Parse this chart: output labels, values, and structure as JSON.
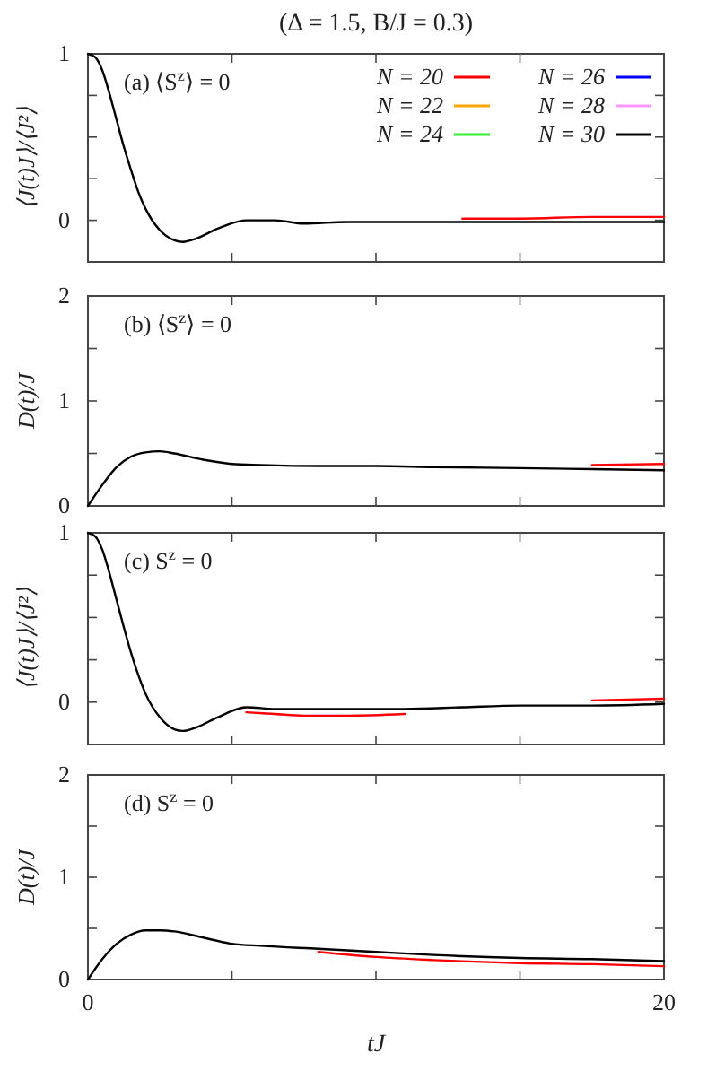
{
  "chart_data": [
    {
      "type": "line",
      "title": "(Δ = 1.5, B/J = 0.3)",
      "ylabel": "⟨J(t)J⟩/⟨J²⟩",
      "annotations": [
        "(a) ⟨S$^{z}$⟩ = 0"
      ],
      "legend": "top right",
      "tick_labels": "y",
      "x": [
        0,
        0.25,
        0.5,
        0.75,
        1,
        1.25,
        1.5,
        1.75,
        2,
        2.5,
        3,
        3.3,
        3.75,
        4.5,
        5.5,
        6.5,
        7.5,
        9,
        11,
        13,
        15,
        17.5,
        20
      ],
      "xlim": [
        0,
        20
      ],
      "xticks": [
        {
          "value": 0,
          "label": null
        },
        {
          "value": 5,
          "label": null
        },
        {
          "value": 10,
          "label": null
        },
        {
          "value": 15,
          "label": null
        },
        {
          "value": 20,
          "label": null
        }
      ],
      "ylim": [
        -0.25,
        1
      ],
      "yticks": [
        {
          "value": -0.25,
          "label": null
        },
        0,
        {
          "value": 0.25,
          "label": null
        },
        {
          "value": 0.5,
          "label": null
        },
        {
          "value": 0.75,
          "label": null
        },
        1
      ],
      "series": [
        {
          "name": "N = 20",
          "color": "#ff0000",
          "values": [
            null,
            null,
            null,
            null,
            null,
            null,
            null,
            null,
            null,
            null,
            null,
            null,
            null,
            null,
            null,
            null,
            null,
            null,
            null,
            0.01,
            0.01,
            0.02,
            0.02
          ]
        },
        {
          "name": "N = 22",
          "color": "#ffa500",
          "values": [
            null,
            null,
            null,
            null,
            null,
            null,
            null,
            null,
            null,
            null,
            null,
            null,
            null,
            null,
            null,
            null,
            null,
            null,
            null,
            null,
            null,
            null,
            null
          ]
        },
        {
          "name": "N = 24",
          "color": "#33ee33",
          "values": [
            null,
            null,
            null,
            null,
            null,
            null,
            null,
            null,
            null,
            null,
            null,
            null,
            null,
            null,
            null,
            null,
            null,
            null,
            null,
            null,
            null,
            null,
            null
          ]
        },
        {
          "name": "N = 26",
          "color": "#0000ff",
          "values": [
            null,
            null,
            null,
            null,
            null,
            null,
            null,
            null,
            null,
            null,
            null,
            null,
            null,
            null,
            null,
            null,
            null,
            null,
            null,
            null,
            null,
            null,
            null
          ]
        },
        {
          "name": "N = 28",
          "color": "#ff99ff",
          "values": [
            null,
            null,
            null,
            null,
            null,
            null,
            null,
            null,
            null,
            null,
            null,
            null,
            null,
            null,
            null,
            null,
            null,
            null,
            null,
            null,
            null,
            null,
            null
          ]
        },
        {
          "name": "N = 30",
          "color": "#000000",
          "values": [
            1,
            0.98,
            0.9,
            0.76,
            0.6,
            0.44,
            0.3,
            0.17,
            0.07,
            -0.06,
            -0.12,
            -0.13,
            -0.11,
            -0.05,
            0,
            0,
            -0.02,
            -0.01,
            -0.01,
            -0.01,
            -0.01,
            -0.01,
            -0.01
          ]
        }
      ]
    },
    {
      "type": "line",
      "ylabel": "D(t)/J",
      "annotations": [
        "(b) ⟨S$^{z}$⟩ = 0"
      ],
      "tick_labels": "y",
      "x": [
        0,
        0.5,
        1,
        1.5,
        2,
        2.5,
        3,
        4,
        5,
        6,
        8,
        10,
        12,
        15,
        17.5,
        20
      ],
      "xlim": [
        0,
        20
      ],
      "xticks": [
        {
          "value": 0,
          "label": null
        },
        {
          "value": 5,
          "label": null
        },
        {
          "value": 10,
          "label": null
        },
        {
          "value": 15,
          "label": null
        },
        {
          "value": 20,
          "label": null
        }
      ],
      "ylim": [
        0,
        2
      ],
      "yticks": [
        0,
        {
          "value": 0.5,
          "label": null
        },
        1,
        {
          "value": 1.5,
          "label": null
        },
        2
      ],
      "series": [
        {
          "color": "#ff0000",
          "values": [
            null,
            null,
            null,
            null,
            null,
            null,
            null,
            null,
            null,
            null,
            null,
            null,
            null,
            null,
            0.39,
            0.4
          ]
        },
        {
          "color": "#ffa500",
          "values": [
            null,
            null,
            null,
            null,
            null,
            null,
            null,
            null,
            null,
            null,
            null,
            null,
            null,
            null,
            null,
            null
          ]
        },
        {
          "color": "#33ee33",
          "values": [
            null,
            null,
            null,
            null,
            null,
            null,
            null,
            null,
            null,
            null,
            null,
            null,
            null,
            null,
            null,
            null
          ]
        },
        {
          "color": "#0000ff",
          "values": [
            null,
            null,
            null,
            null,
            null,
            null,
            null,
            null,
            null,
            null,
            null,
            null,
            null,
            null,
            null,
            null
          ]
        },
        {
          "color": "#ff99ff",
          "values": [
            null,
            null,
            null,
            null,
            null,
            null,
            null,
            null,
            null,
            null,
            null,
            null,
            null,
            null,
            null,
            null
          ]
        },
        {
          "color": "#000000",
          "values": [
            0,
            0.2,
            0.37,
            0.47,
            0.51,
            0.52,
            0.5,
            0.44,
            0.4,
            0.39,
            0.38,
            0.38,
            0.37,
            0.36,
            0.35,
            0.34
          ]
        }
      ]
    },
    {
      "type": "line",
      "ylabel": "⟨J(t)J⟩/⟨J²⟩",
      "annotations": [
        "(c) S$^{z}$ = 0"
      ],
      "tick_labels": "y",
      "x": [
        0,
        0.25,
        0.5,
        0.75,
        1,
        1.25,
        1.5,
        1.75,
        2,
        2.5,
        3,
        3.3,
        3.75,
        4.5,
        5.5,
        6.5,
        7.5,
        9,
        11,
        13,
        15,
        17.5,
        20
      ],
      "xlim": [
        0,
        20
      ],
      "xticks": [
        {
          "value": 0,
          "label": null
        },
        {
          "value": 5,
          "label": null
        },
        {
          "value": 10,
          "label": null
        },
        {
          "value": 15,
          "label": null
        },
        {
          "value": 20,
          "label": null
        }
      ],
      "ylim": [
        -0.25,
        1
      ],
      "yticks": [
        {
          "value": -0.25,
          "label": null
        },
        0,
        {
          "value": 0.25,
          "label": null
        },
        {
          "value": 0.5,
          "label": null
        },
        {
          "value": 0.75,
          "label": null
        },
        1
      ],
      "series": [
        {
          "color": "#ff0000",
          "values": [
            null,
            null,
            null,
            null,
            null,
            null,
            null,
            null,
            null,
            null,
            null,
            null,
            null,
            null,
            -0.06,
            -0.07,
            -0.08,
            -0.08,
            -0.07,
            null,
            null,
            0.01,
            0.02
          ]
        },
        {
          "color": "#ffa500",
          "values": [
            null,
            null,
            null,
            null,
            null,
            null,
            null,
            null,
            null,
            null,
            null,
            null,
            null,
            null,
            null,
            null,
            null,
            null,
            null,
            null,
            null,
            null,
            null
          ]
        },
        {
          "color": "#33ee33",
          "values": [
            null,
            null,
            null,
            null,
            null,
            null,
            null,
            null,
            null,
            null,
            null,
            null,
            null,
            null,
            null,
            null,
            null,
            null,
            null,
            null,
            null,
            null,
            null
          ]
        },
        {
          "color": "#0000ff",
          "values": [
            null,
            null,
            null,
            null,
            null,
            null,
            null,
            null,
            null,
            null,
            null,
            null,
            null,
            null,
            null,
            null,
            null,
            null,
            null,
            null,
            null,
            null,
            null
          ]
        },
        {
          "color": "#ff99ff",
          "values": [
            null,
            null,
            null,
            null,
            null,
            null,
            null,
            null,
            null,
            null,
            null,
            null,
            null,
            null,
            null,
            null,
            null,
            null,
            null,
            null,
            null,
            null,
            null
          ]
        },
        {
          "color": "#000000",
          "values": [
            1,
            0.98,
            0.9,
            0.76,
            0.6,
            0.44,
            0.29,
            0.16,
            0.05,
            -0.09,
            -0.16,
            -0.17,
            -0.15,
            -0.09,
            -0.03,
            -0.04,
            -0.04,
            -0.04,
            -0.04,
            -0.03,
            -0.02,
            -0.02,
            -0.01
          ]
        }
      ]
    },
    {
      "type": "line",
      "ylabel": "D(t)/J",
      "xlabel": "tJ",
      "annotations": [
        "(d) S$^{z}$ = 0"
      ],
      "x": [
        0,
        0.5,
        1,
        1.5,
        2,
        2.5,
        3,
        4,
        5,
        6,
        8,
        10,
        12,
        15,
        17.5,
        20
      ],
      "xlim": [
        0,
        20
      ],
      "xticks": [
        0,
        {
          "value": 5,
          "label": null
        },
        {
          "value": 10,
          "label": null
        },
        {
          "value": 15,
          "label": null
        },
        20
      ],
      "ylim": [
        0,
        2
      ],
      "yticks": [
        0,
        {
          "value": 0.5,
          "label": null
        },
        1,
        {
          "value": 1.5,
          "label": null
        },
        2
      ],
      "series": [
        {
          "color": "#ff0000",
          "values": [
            null,
            null,
            null,
            null,
            null,
            null,
            null,
            null,
            null,
            null,
            0.27,
            0.22,
            0.19,
            0.16,
            0.15,
            0.13
          ]
        },
        {
          "color": "#ffa500",
          "values": [
            null,
            null,
            null,
            null,
            null,
            null,
            null,
            null,
            null,
            null,
            null,
            null,
            null,
            null,
            null,
            null
          ]
        },
        {
          "color": "#33ee33",
          "values": [
            null,
            null,
            null,
            null,
            null,
            null,
            null,
            null,
            null,
            null,
            null,
            null,
            null,
            null,
            null,
            null
          ]
        },
        {
          "color": "#0000ff",
          "values": [
            null,
            null,
            null,
            null,
            null,
            null,
            null,
            null,
            null,
            null,
            null,
            null,
            null,
            null,
            null,
            null
          ]
        },
        {
          "color": "#ff99ff",
          "values": [
            null,
            null,
            null,
            null,
            null,
            null,
            null,
            null,
            null,
            null,
            null,
            null,
            null,
            null,
            null,
            null
          ]
        },
        {
          "color": "#000000",
          "values": [
            0,
            0.2,
            0.35,
            0.44,
            0.48,
            0.48,
            0.47,
            0.41,
            0.35,
            0.33,
            0.3,
            0.27,
            0.24,
            0.21,
            0.2,
            0.18
          ]
        }
      ]
    }
  ]
}
